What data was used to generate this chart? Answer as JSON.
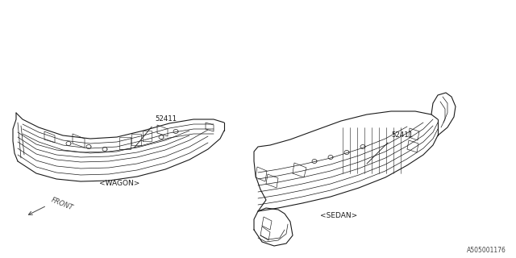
{
  "background_color": "#ffffff",
  "line_color": "#1a1a1a",
  "label_color": "#444444",
  "part_number": "52411",
  "wagon_label": "<WAGON>",
  "sedan_label": "<SEDAN>",
  "front_label": "FRONT",
  "diagram_id": "A505001176",
  "fig_width": 6.4,
  "fig_height": 3.2,
  "dpi": 100
}
